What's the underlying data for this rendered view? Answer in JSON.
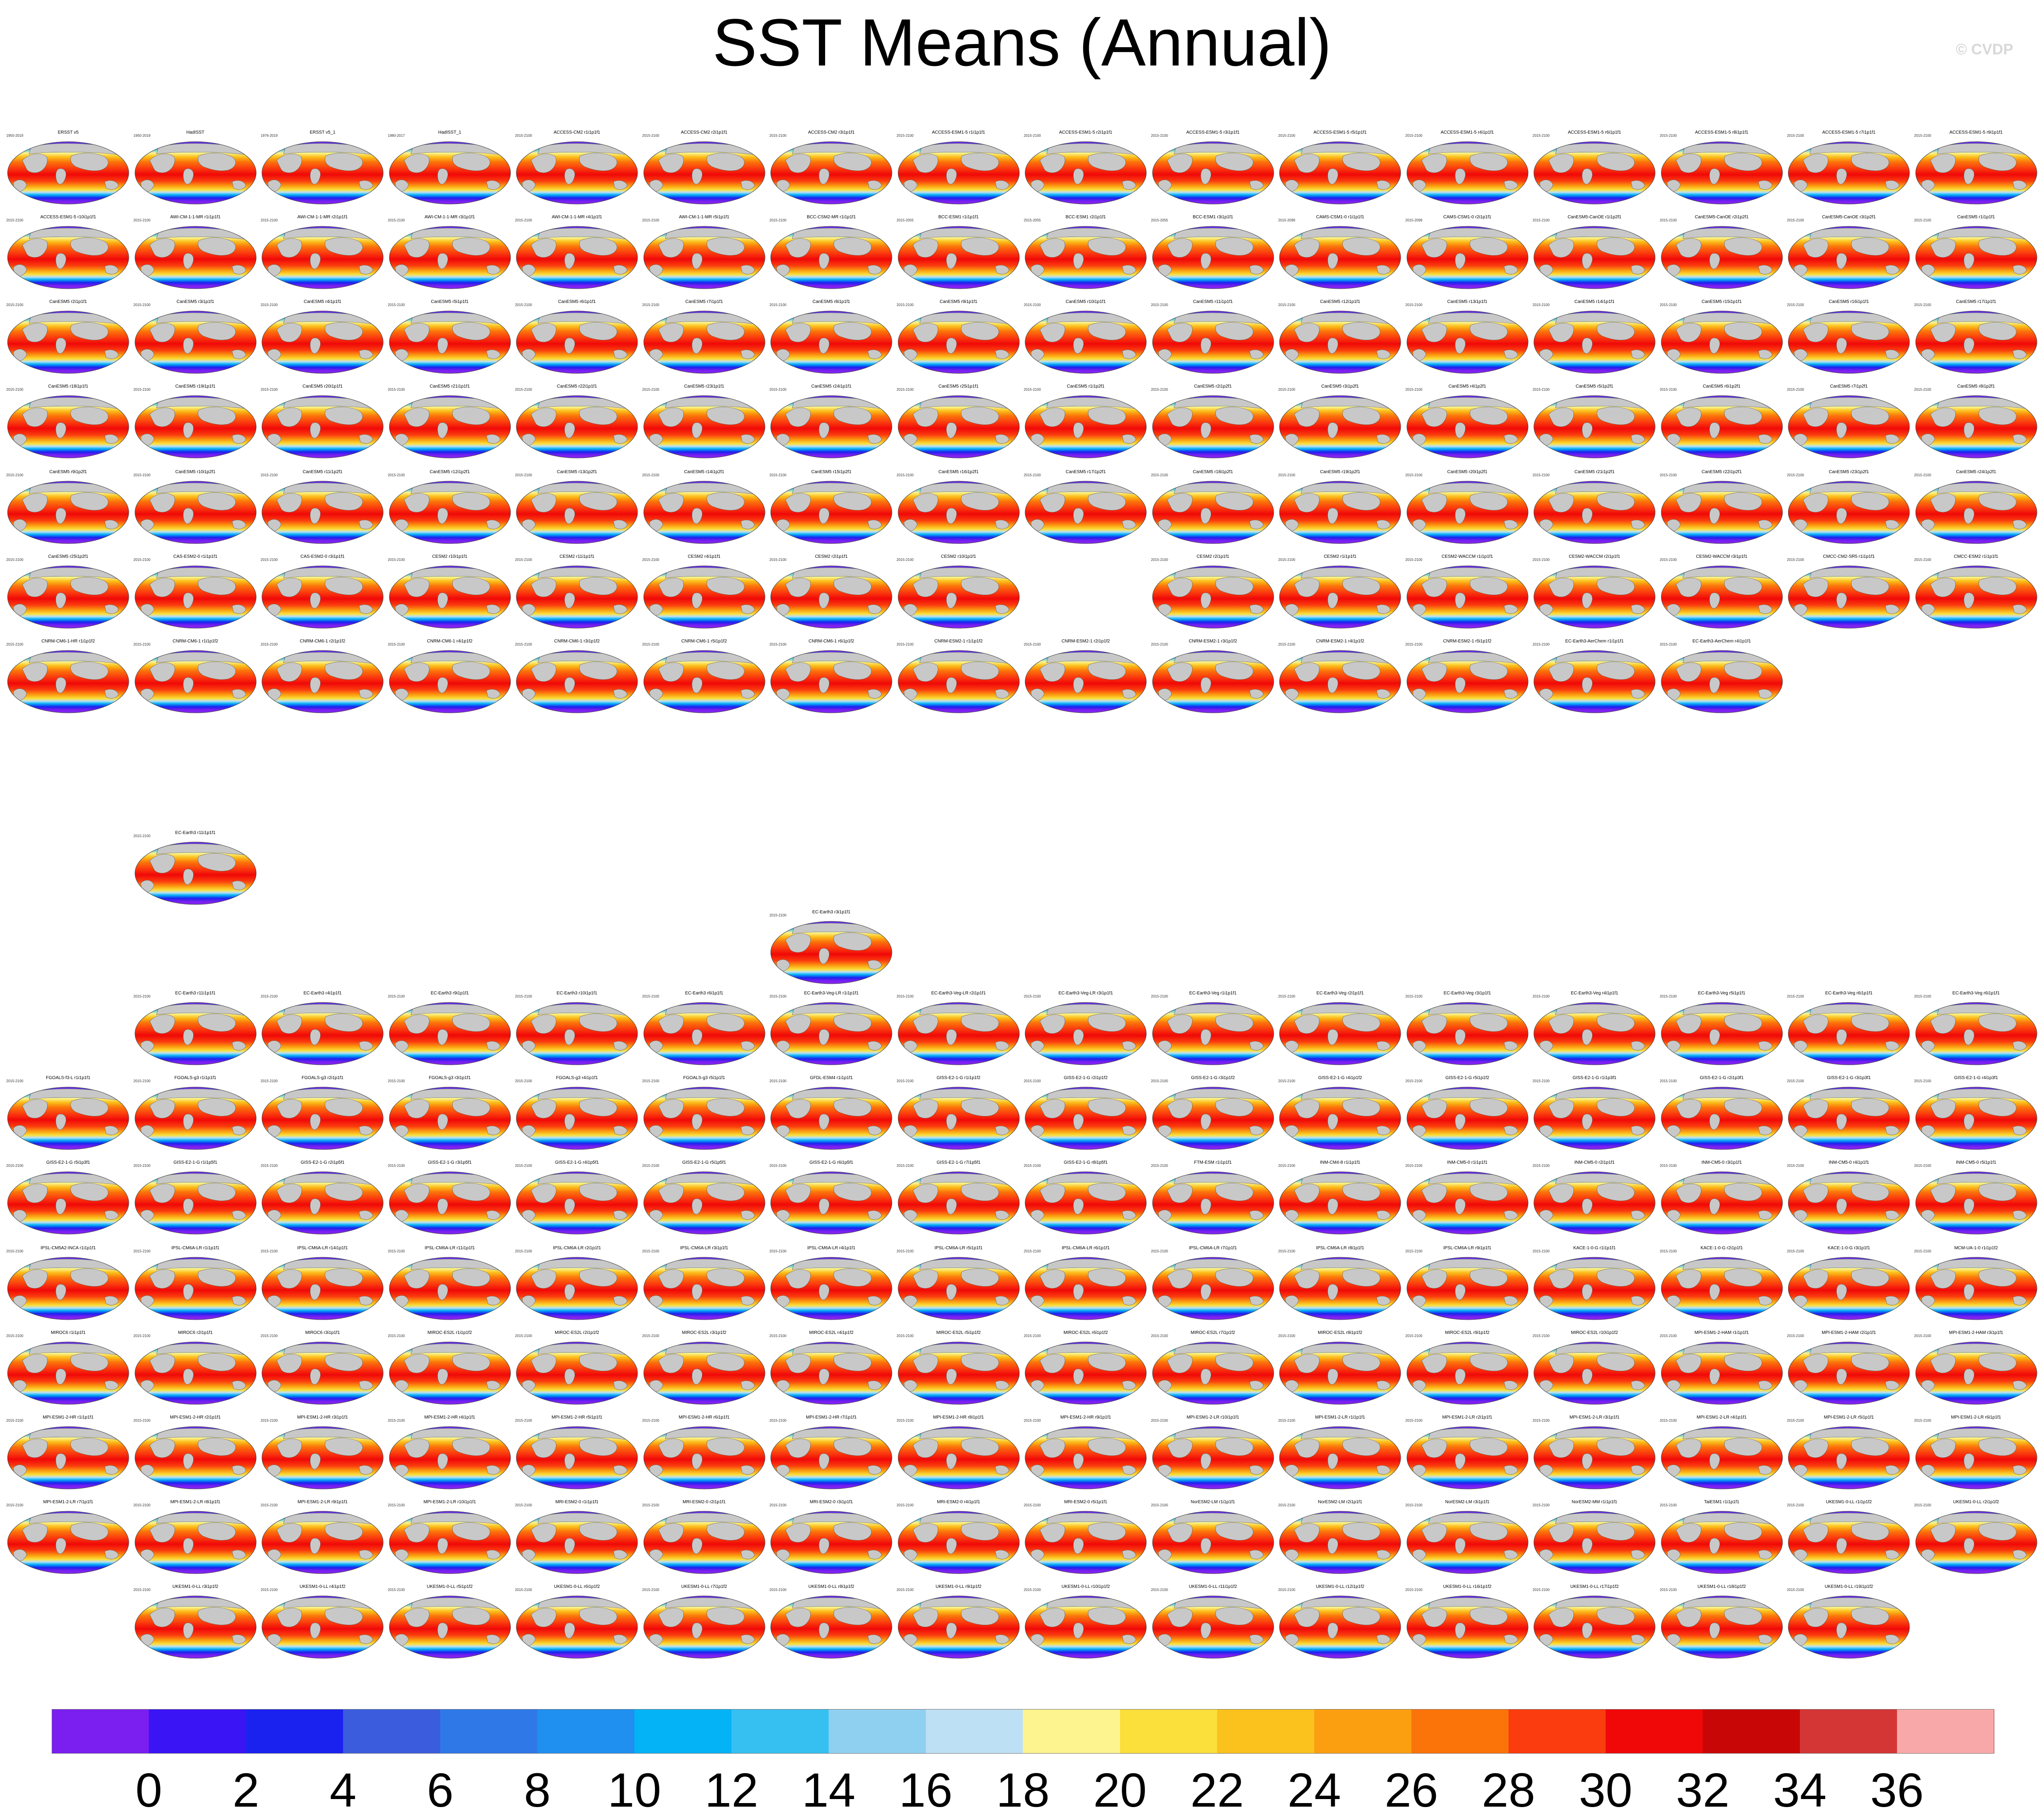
{
  "title": "SST Means (Annual)",
  "credit": "© CVDP",
  "chart_data": {
    "type": "heatmap",
    "title": "SST Means (Annual)",
    "description_variable": "Sea surface temperature annual mean",
    "colorbar": {
      "levels": [
        0,
        2,
        4,
        6,
        8,
        10,
        12,
        14,
        16,
        18,
        20,
        22,
        24,
        26,
        28,
        30,
        32,
        34,
        36
      ],
      "tick_labels": [
        "0",
        "2",
        "4",
        "6",
        "8",
        "10",
        "12",
        "14",
        "16",
        "18",
        "20",
        "22",
        "24",
        "26",
        "28",
        "30",
        "32",
        "34",
        "36"
      ],
      "colors": [
        "#7a1ff0",
        "#3a14f4",
        "#1a22f0",
        "#3b5ddd",
        "#2f78e8",
        "#1f90f0",
        "#04b2f6",
        "#36c0f2",
        "#8fcff0",
        "#bde0f4",
        "#fdf48f",
        "#fbdf3a",
        "#fbc11c",
        "#fb9e10",
        "#fb740a",
        "#fb3c0e",
        "#f00808",
        "#c80606",
        "#d43636",
        "#f8a8a8"
      ]
    },
    "panels": [
      {
        "title": "ERSST v5",
        "years": "1950-2019"
      },
      {
        "title": "HadISST",
        "years": "1950-2019"
      },
      {
        "title": "ERSST v5_1",
        "years": "1976-2019"
      },
      {
        "title": "HadISST_1",
        "years": "1980-2017"
      },
      {
        "title": "ACCESS-CM2 r1i1p1f1",
        "years": "2015-2100"
      },
      {
        "title": "ACCESS-CM2 r2i1p1f1",
        "years": "2015-2100"
      },
      {
        "title": "ACCESS-CM2 r3i1p1f1",
        "years": "2015-2100"
      },
      {
        "title": "ACCESS-ESM1-5 r1i1p1f1",
        "years": "2015-2100"
      },
      {
        "title": "ACCESS-ESM1-5 r2i1p1f1",
        "years": "2015-2100"
      },
      {
        "title": "ACCESS-ESM1-5 r3i1p1f1",
        "years": "2015-2100"
      },
      {
        "title": "ACCESS-ESM1-5 r5i1p1f1",
        "years": "2015-2100"
      },
      {
        "title": "ACCESS-ESM1-5 r4i1p1f1",
        "years": "2015-2100"
      },
      {
        "title": "ACCESS-ESM1-5 r6i1p1f1",
        "years": "2015-2100"
      },
      {
        "title": "ACCESS-ESM1-5 r8i1p1f1",
        "years": "2015-2100"
      },
      {
        "title": "ACCESS-ESM1-5 r7i1p1f1",
        "years": "2015-2100"
      },
      {
        "title": "ACCESS-ESM1-5 r9i1p1f1",
        "years": "2015-2100"
      },
      {
        "title": "ACCESS-ESM1-5 r10i1p1f1",
        "years": "2015-2100"
      },
      {
        "title": "AWI-CM-1-1-MR r1i1p1f1",
        "years": "2015-2100"
      },
      {
        "title": "AWI-CM-1-1-MR r2i1p1f1",
        "years": "2015-2100"
      },
      {
        "title": "AWI-CM-1-1-MR r3i1p1f1",
        "years": "2015-2100"
      },
      {
        "title": "AWI-CM-1-1-MR r4i1p1f1",
        "years": "2015-2100"
      },
      {
        "title": "AWI-CM-1-1-MR r5i1p1f1",
        "years": "2015-2100"
      },
      {
        "title": "BCC-CSM2-MR r1i1p1f1",
        "years": "2015-2100"
      },
      {
        "title": "BCC-ESM1 r1i1p1f1",
        "years": "2015-2055"
      },
      {
        "title": "BCC-ESM1 r2i1p1f1",
        "years": "2015-2055"
      },
      {
        "title": "BCC-ESM1 r3i1p1f1",
        "years": "2015-2055"
      },
      {
        "title": "CAMS-CSM1-0 r1i1p1f1",
        "years": "2015-2099"
      },
      {
        "title": "CAMS-CSM1-0 r2i1p1f1",
        "years": "2015-2099"
      },
      {
        "title": "CanESM5-CanOE r1i1p2f1",
        "years": "2015-2100"
      },
      {
        "title": "CanESM5-CanOE r2i1p2f1",
        "years": "2015-2100"
      },
      {
        "title": "CanESM5-CanOE r3i1p2f1",
        "years": "2015-2100"
      },
      {
        "title": "CanESM5 r1i1p1f1",
        "years": "2015-2100"
      },
      {
        "title": "CanESM5 r2i1p1f1",
        "years": "2015-2100"
      },
      {
        "title": "CanESM5 r3i1p1f1",
        "years": "2015-2100"
      },
      {
        "title": "CanESM5 r4i1p1f1",
        "years": "2015-2100"
      },
      {
        "title": "CanESM5 r5i1p1f1",
        "years": "2015-2100"
      },
      {
        "title": "CanESM5 r6i1p1f1",
        "years": "2015-2100"
      },
      {
        "title": "CanESM5 r7i1p1f1",
        "years": "2015-2100"
      },
      {
        "title": "CanESM5 r8i1p1f1",
        "years": "2015-2100"
      },
      {
        "title": "CanESM5 r9i1p1f1",
        "years": "2015-2100"
      },
      {
        "title": "CanESM5 r10i1p1f1",
        "years": "2015-2100"
      },
      {
        "title": "CanESM5 r11i1p1f1",
        "years": "2015-2100"
      },
      {
        "title": "CanESM5 r12i1p1f1",
        "years": "2015-2100"
      },
      {
        "title": "CanESM5 r13i1p1f1",
        "years": "2015-2100"
      },
      {
        "title": "CanESM5 r14i1p1f1",
        "years": "2015-2100"
      },
      {
        "title": "CanESM5 r15i1p1f1",
        "years": "2015-2100"
      },
      {
        "title": "CanESM5 r16i1p1f1",
        "years": "2015-2100"
      },
      {
        "title": "CanESM5 r17i1p1f1",
        "years": "2015-2100"
      },
      {
        "title": "CanESM5 r18i1p1f1",
        "years": "2015-2100"
      },
      {
        "title": "CanESM5 r19i1p1f1",
        "years": "2015-2100"
      },
      {
        "title": "CanESM5 r20i1p1f1",
        "years": "2015-2100"
      }
    ]
  },
  "rows": [
    {
      "titles": [
        "ERSST v5",
        "HadISST",
        "ERSST v5_1",
        "HadISST_1",
        "ACCESS-CM2 r1i1p1f1",
        "ACCESS-CM2 r2i1p1f1",
        "ACCESS-CM2 r3i1p1f1",
        "ACCESS-ESM1-5 r1i1p1f1",
        "ACCESS-ESM1-5 r2i1p1f1",
        "ACCESS-ESM1-5 r3i1p1f1",
        "ACCESS-ESM1-5 r5i1p1f1",
        "ACCESS-ESM1-5 r4i1p1f1",
        "ACCESS-ESM1-5 r6i1p1f1",
        "ACCESS-ESM1-5 r8i1p1f1",
        "ACCESS-ESM1-5 r7i1p1f1",
        "ACCESS-ESM1-5 r9i1p1f1"
      ],
      "years": [
        "1950-2019",
        "1950-2019",
        "1976-2019",
        "1980-2017",
        "2015-2100",
        "2015-2100",
        "2015-2100",
        "2015-2100",
        "2015-2100",
        "2015-2100",
        "2015-2100",
        "2015-2100",
        "2015-2100",
        "2015-2100",
        "2015-2100",
        "2015-2100"
      ]
    },
    {
      "titles": [
        "ACCESS-ESM1-5 r10i1p1f1",
        "AWI-CM-1-1-MR r1i1p1f1",
        "AWI-CM-1-1-MR r2i1p1f1",
        "AWI-CM-1-1-MR r3i1p1f1",
        "AWI-CM-1-1-MR r4i1p1f1",
        "AWI-CM-1-1-MR r5i1p1f1",
        "BCC-CSM2-MR r1i1p1f1",
        "BCC-ESM1 r1i1p1f1",
        "BCC-ESM1 r2i1p1f1",
        "BCC-ESM1 r3i1p1f1",
        "CAMS-CSM1-0 r1i1p1f1",
        "CAMS-CSM1-0 r2i1p1f1",
        "CanESM5-CanOE r1i1p2f1",
        "CanESM5-CanOE r2i1p2f1",
        "CanESM5-CanOE r3i1p2f1",
        "CanESM5 r1i1p1f1"
      ],
      "years": [
        "2015-2100",
        "2015-2100",
        "2015-2100",
        "2015-2100",
        "2015-2100",
        "2015-2100",
        "2015-2100",
        "2015-2055",
        "2015-2055",
        "2015-2055",
        "2015-2099",
        "2015-2099",
        "2015-2100",
        "2015-2100",
        "2015-2100",
        "2015-2100"
      ]
    },
    {
      "titles": [
        "CanESM5 r2i1p1f1",
        "CanESM5 r3i1p1f1",
        "CanESM5 r4i1p1f1",
        "CanESM5 r5i1p1f1",
        "CanESM5 r6i1p1f1",
        "CanESM5 r7i1p1f1",
        "CanESM5 r8i1p1f1",
        "CanESM5 r9i1p1f1",
        "CanESM5 r10i1p1f1",
        "CanESM5 r11i1p1f1",
        "CanESM5 r12i1p1f1",
        "CanESM5 r13i1p1f1",
        "CanESM5 r14i1p1f1",
        "CanESM5 r15i1p1f1",
        "CanESM5 r16i1p1f1",
        "CanESM5 r17i1p1f1"
      ],
      "years": [
        "2015-2100",
        "2015-2100",
        "2015-2100",
        "2015-2100",
        "2015-2100",
        "2015-2100",
        "2015-2100",
        "2015-2100",
        "2015-2100",
        "2015-2100",
        "2015-2100",
        "2015-2100",
        "2015-2100",
        "2015-2100",
        "2015-2100",
        "2015-2100"
      ]
    },
    {
      "titles": [
        "CanESM5 r18i1p1f1",
        "CanESM5 r19i1p1f1",
        "CanESM5 r20i1p1f1",
        "CanESM5 r21i1p1f1",
        "CanESM5 r22i1p1f1",
        "CanESM5 r23i1p1f1",
        "CanESM5 r24i1p1f1",
        "CanESM5 r25i1p1f1",
        "CanESM5 r1i1p2f1",
        "CanESM5 r2i1p2f1",
        "CanESM5 r3i1p2f1",
        "CanESM5 r4i1p2f1",
        "CanESM5 r5i1p2f1",
        "CanESM5 r6i1p2f1",
        "CanESM5 r7i1p2f1",
        "CanESM5 r8i1p2f1"
      ],
      "years": [
        "2015-2100",
        "2015-2100",
        "2015-2100",
        "2015-2100",
        "2015-2100",
        "2015-2100",
        "2015-2100",
        "2015-2100",
        "2015-2100",
        "2015-2100",
        "2015-2100",
        "2015-2100",
        "2015-2100",
        "2015-2100",
        "2015-2100",
        "2015-2100"
      ]
    },
    {
      "titles": [
        "CanESM5 r9i1p2f1",
        "CanESM5 r10i1p2f1",
        "CanESM5 r11i1p2f1",
        "CanESM5 r12i1p2f1",
        "CanESM5 r13i1p2f1",
        "CanESM5 r14i1p2f1",
        "CanESM5 r15i1p2f1",
        "CanESM5 r16i1p2f1",
        "CanESM5 r17i1p2f1",
        "CanESM5 r18i1p2f1",
        "CanESM5 r19i1p2f1",
        "CanESM5 r20i1p2f1",
        "CanESM5 r21i1p2f1",
        "CanESM5 r22i1p2f1",
        "CanESM5 r23i1p2f1",
        "CanESM5 r24i1p2f1"
      ],
      "years": [
        "2015-2100",
        "2015-2100",
        "2015-2100",
        "2015-2100",
        "2015-2100",
        "2015-2100",
        "2015-2100",
        "2015-2100",
        "2015-2100",
        "2015-2100",
        "2015-2100",
        "2015-2100",
        "2015-2100",
        "2015-2100",
        "2015-2100",
        "2015-2100"
      ]
    },
    {
      "titles": [
        "CanESM5 r25i1p2f1",
        "CAS-ESM2-0 r1i1p1f1",
        "CAS-ESM2-0 r3i1p1f1",
        "CESM2 r10i1p1f1",
        "CESM2 r11i1p1f1",
        "CESM2 r4i1p1f1",
        "CESM2 r2i1p1f1",
        "CESM2 r10i1p1f1",
        "",
        "CESM2 r2i1p1f1",
        "CESM2 r1i1p1f1",
        "CESM2-WACCM r1i1p1f1",
        "CESM2-WACCM r2i1p1f1",
        "CESM2-WACCM r3i1p1f1",
        "CMCC-CM2-SR5 r1i1p1f1",
        "CMCC-ESM2 r1i1p1f1"
      ],
      "years": [
        "2015-2100",
        "2015-2100",
        "2015-2100",
        "2015-2100",
        "2015-2100",
        "2015-2100",
        "2015-2100",
        "2015-2100",
        "",
        "2015-2100",
        "2015-2100",
        "2015-2100",
        "2015-2100",
        "2015-2100",
        "2015-2100",
        "2015-2100"
      ]
    },
    {
      "titles": [
        "CNRM-CM6-1-HR r1i1p1f2",
        "CNRM-CM6-1 r1i1p1f2",
        "CNRM-CM6-1 r2i1p1f2",
        "CNRM-CM6-1 r4i1p1f2",
        "CNRM-CM6-1 r3i1p1f2",
        "CNRM-CM6-1 r5i1p1f2",
        "CNRM-CM6-1 r6i1p1f2",
        "CNRM-ESM2-1 r1i1p1f2",
        "CNRM-ESM2-1 r2i1p1f2",
        "CNRM-ESM2-1 r3i1p1f2",
        "CNRM-ESM2-1 r4i1p1f2",
        "CNRM-ESM2-1 r5i1p1f2",
        "EC-Earth3-AerChem r1i1p1f1",
        "EC-Earth3-AerChem r4i1p1f1",
        "",
        ""
      ],
      "years": [
        "2015-2100",
        "2015-2100",
        "2015-2100",
        "2015-2100",
        "2015-2100",
        "2015-2100",
        "2015-2100",
        "2015-2100",
        "2015-2100",
        "2015-2100",
        "2015-2100",
        "2015-2100",
        "2015-2100",
        "2015-2100",
        "",
        ""
      ]
    }
  ],
  "lower_rows": [
    {
      "titles": [
        "",
        "EC-Earth3 r11i1p1f1",
        "EC-Earth3 r4i1p1f1",
        "EC-Earth3 r9i1p1f1",
        "EC-Earth3 r10i1p1f1",
        "EC-Earth3 r6i1p1f1",
        "EC-Earth3-Veg-LR r1i1p1f1",
        "EC-Earth3-Veg-LR r2i1p1f1",
        "EC-Earth3-Veg-LR r3i1p1f1",
        "EC-Earth3-Veg r1i1p1f1",
        "EC-Earth3-Veg r2i1p1f1",
        "EC-Earth3-Veg r3i1p1f1",
        "EC-Earth3-Veg r4i1p1f1",
        "EC-Earth3-Veg r5i1p1f1",
        "EC-Earth3-Veg r6i1p1f1",
        "EC-Earth3-Veg r6i1p1f1"
      ]
    },
    {
      "titles": [
        "FGOALS-f3-L r1i1p1f1",
        "FGOALS-g3 r1i1p1f1",
        "FGOALS-g3 r2i1p1f1",
        "FGOALS-g3 r3i1p1f1",
        "FGOALS-g3 r4i1p1f1",
        "FGOALS-g3 r5i1p1f1",
        "GFDL-ESM4 r1i1p1f1",
        "GISS-E2-1-G r1i1p1f2",
        "GISS-E2-1-G r2i1p1f2",
        "GISS-E2-1-G r3i1p1f2",
        "GISS-E2-1-G r4i1p1f2",
        "GISS-E2-1-G r5i1p1f2",
        "GISS-E2-1-G r1i1p3f1",
        "GISS-E2-1-G r2i1p3f1",
        "GISS-E2-1-G r3i1p3f1",
        "GISS-E2-1-G r4i1p3f1"
      ]
    },
    {
      "titles": [
        "GISS-E2-1-G r5i1p3f1",
        "GISS-E2-1-G r1i1p5f1",
        "GISS-E2-1-G r2i1p5f1",
        "GISS-E2-1-G r3i1p5f1",
        "GISS-E2-1-G r4i1p5f1",
        "GISS-E2-1-G r5i1p5f1",
        "GISS-E2-1-G r6i1p5f1",
        "GISS-E2-1-G r7i1p5f1",
        "GISS-E2-1-G r8i1p5f1",
        "FTM-ESM r1i1p1f1",
        "INM-CM4-8 r1i1p1f1",
        "INM-CM5-0 r1i1p1f1",
        "INM-CM5-0 r2i1p1f1",
        "INM-CM5-0 r3i1p1f1",
        "INM-CM5-0 r4i1p1f1",
        "INM-CM5-0 r5i1p1f1"
      ]
    },
    {
      "titles": [
        "IPSL-CM5A2-INCA r1i1p1f1",
        "IPSL-CM6A-LR r1i1p1f1",
        "IPSL-CM6A-LR r14i1p1f1",
        "IPSL-CM6A-LR r11i1p1f1",
        "IPSL-CM6A-LR r2i1p1f1",
        "IPSL-CM6A-LR r3i1p1f1",
        "IPSL-CM6A-LR r4i1p1f1",
        "IPSL-CM6A-LR r5i1p1f1",
        "IPSL-CM6A-LR r6i1p1f1",
        "IPSL-CM6A-LR r7i1p1f1",
        "IPSL-CM6A-LR r8i1p1f1",
        "IPSL-CM6A-LR r9i1p1f1",
        "KACE-1-0-G r1i1p1f1",
        "KACE-1-0-G r2i1p1f1",
        "KACE-1-0-G r3i1p1f1",
        "MCM-UA-1-0 r1i1p1f2"
      ]
    },
    {
      "titles": [
        "MIROC6 r1i1p1f1",
        "MIROC6 r2i1p1f1",
        "MIROC6 r3i1p1f1",
        "MIROC-ES2L r1i1p1f2",
        "MIROC-ES2L r2i1p1f2",
        "MIROC-ES2L r3i1p1f2",
        "MIROC-ES2L r4i1p1f2",
        "MIROC-ES2L r5i1p1f2",
        "MIROC-ES2L r6i1p1f2",
        "MIROC-ES2L r7i1p1f2",
        "MIROC-ES2L r8i1p1f2",
        "MIROC-ES2L r9i1p1f2",
        "MIROC-ES2L r10i1p1f2",
        "MPI-ESM1-2-HAM r1i1p1f1",
        "MPI-ESM1-2-HAM r2i1p1f1",
        "MPI-ESM1-2-HAM r3i1p1f1"
      ]
    },
    {
      "titles": [
        "MPI-ESM1-2-HR r1i1p1f1",
        "MPI-ESM1-2-HR r2i1p1f1",
        "MPI-ESM1-2-HR r3i1p1f1",
        "MPI-ESM1-2-HR r4i1p1f1",
        "MPI-ESM1-2-HR r5i1p1f1",
        "MPI-ESM1-2-HR r6i1p1f1",
        "MPI-ESM1-2-HR r7i1p1f1",
        "MPI-ESM1-2-HR r8i1p1f1",
        "MPI-ESM1-2-HR r9i1p1f1",
        "MPI-ESM1-2-LR r10i1p1f1",
        "MPI-ESM1-2-LR r1i1p1f1",
        "MPI-ESM1-2-LR r2i1p1f1",
        "MPI-ESM1-2-LR r3i1p1f1",
        "MPI-ESM1-2-LR r4i1p1f1",
        "MPI-ESM1-2-LR r5i1p1f1",
        "MPI-ESM1-2-LR r6i1p1f1"
      ]
    },
    {
      "titles": [
        "MPI-ESM1-2-LR r7i1p1f1",
        "MPI-ESM1-2-LR r8i1p1f1",
        "MPI-ESM1-2-LR r9i1p1f1",
        "MPI-ESM1-2-LR r10i1p1f1",
        "MRI-ESM2-0 r1i1p1f1",
        "MRI-ESM2-0 r2i1p1f1",
        "MRI-ESM2-0 r3i1p1f1",
        "MRI-ESM2-0 r4i1p1f1",
        "MRI-ESM2-0 r5i1p1f1",
        "NorESM2-LM r1i1p1f1",
        "NorESM2-LM r2i1p1f1",
        "NorESM2-LM r3i1p1f1",
        "NorESM2-MM r1i1p1f1",
        "TaiESM1 r1i1p1f1",
        "UKESM1-0-LL r1i1p1f2",
        "UKESM1-0-LL r2i1p1f2"
      ]
    },
    {
      "titles": [
        "",
        "UKESM1-0-LL r3i1p1f2",
        "UKESM1-0-LL r4i1p1f2",
        "UKESM1-0-LL r5i1p1f2",
        "UKESM1-0-LL r6i1p1f2",
        "UKESM1-0-LL r7i1p1f2",
        "UKESM1-0-LL r8i1p1f2",
        "UKESM1-0-LL r9i1p1f2",
        "UKESM1-0-LL r10i1p1f2",
        "UKESM1-0-LL r11i1p1f2",
        "UKESM1-0-LL r12i1p1f2",
        "UKESM1-0-LL r16i1p1f2",
        "UKESM1-0-LL r17i1p1f2",
        "UKESM1-0-LL r18i1p1f2",
        "UKESM1-0-LL r19i1p1f2",
        ""
      ]
    }
  ],
  "solo_panels": [
    {
      "title": "EC-Earth3 r11i1p1f1",
      "years": "2015-2100"
    },
    {
      "title": "EC-Earth3 r3i1p1f1",
      "years": "2015-2100"
    }
  ]
}
